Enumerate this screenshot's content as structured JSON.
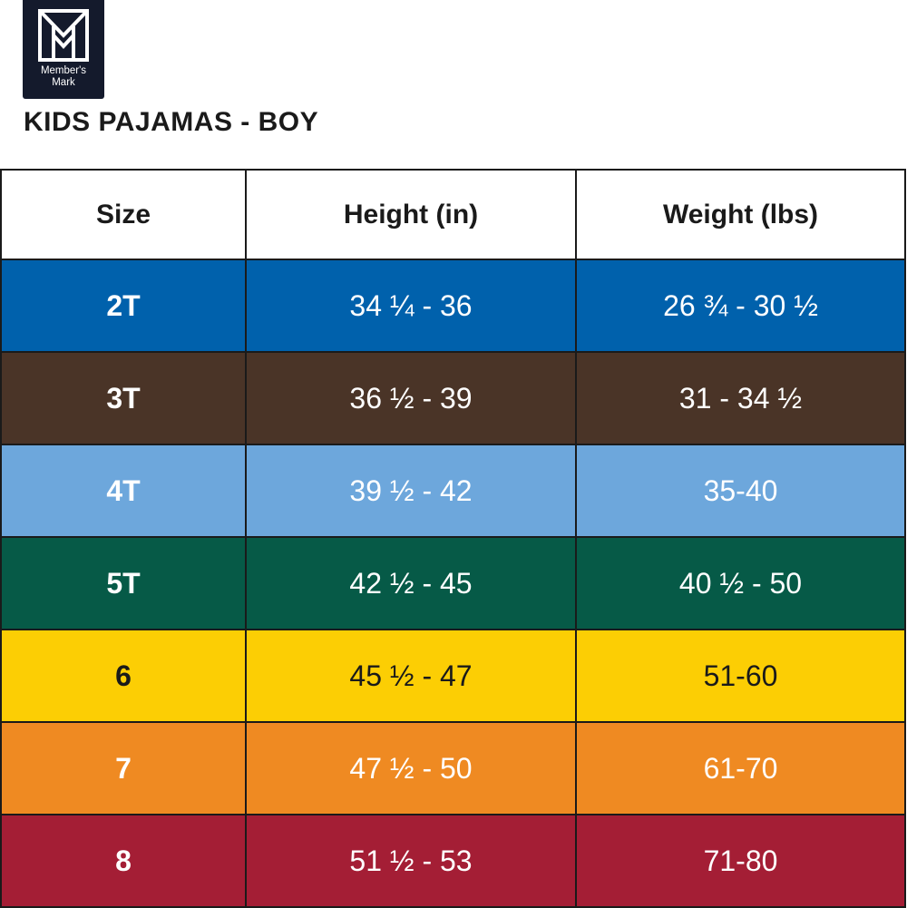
{
  "brand": {
    "line1": "Member's",
    "line2": "Mark",
    "logo_icon": "members-mark-m-icon",
    "logo_bg": "#141a2c"
  },
  "title": "KIDS PAJAMAS - BOY",
  "table": {
    "headers": [
      "Size",
      "Height (in)",
      "Weight (lbs)"
    ],
    "rows": [
      {
        "size": "2T",
        "height": "34 ¼ - 36",
        "weight": "26 ¾ - 30 ½",
        "bg": "#0061ac",
        "fg": "#ffffff"
      },
      {
        "size": "3T",
        "height": "36 ½ - 39",
        "weight": "31 - 34 ½",
        "bg": "#4a3427",
        "fg": "#ffffff"
      },
      {
        "size": "4T",
        "height": "39 ½ - 42",
        "weight": "35-40",
        "bg": "#6da7dc",
        "fg": "#ffffff"
      },
      {
        "size": "5T",
        "height": "42 ½ - 45",
        "weight": "40 ½ - 50",
        "bg": "#065a47",
        "fg": "#ffffff"
      },
      {
        "size": "6",
        "height": "45 ½ - 47",
        "weight": "51-60",
        "bg": "#fcce04",
        "fg": "#1a1a1a"
      },
      {
        "size": "7",
        "height": "47 ½ - 50",
        "weight": "61-70",
        "bg": "#ef8a22",
        "fg": "#ffffff"
      },
      {
        "size": "8",
        "height": "51 ½ - 53",
        "weight": "71-80",
        "bg": "#a41e35",
        "fg": "#ffffff"
      }
    ]
  }
}
